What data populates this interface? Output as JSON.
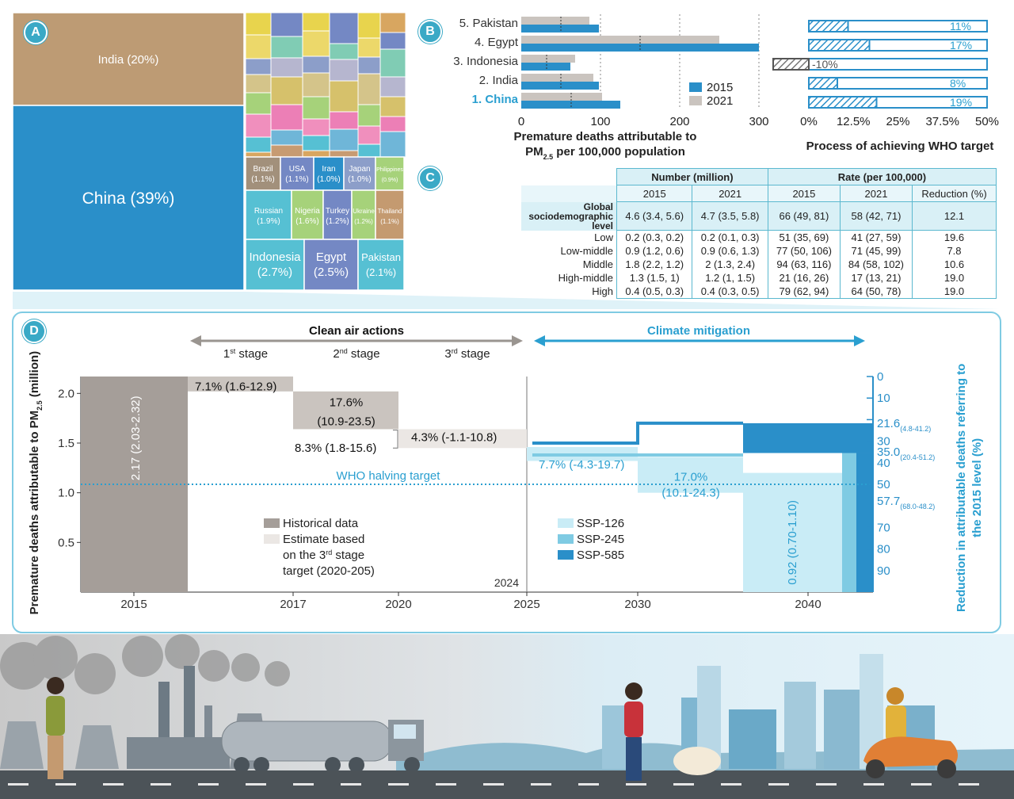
{
  "panels": {
    "a": "A",
    "b": "B",
    "c": "C",
    "d": "D"
  },
  "chart_data": [
    {
      "type": "treemap",
      "panel": "A",
      "items": [
        {
          "name": "China",
          "label": "China (39%)",
          "share": 39
        },
        {
          "name": "India",
          "label": "India (20%)",
          "share": 20
        },
        {
          "name": "Indonesia",
          "label": "Indonesia (2.7%)",
          "share": 2.7
        },
        {
          "name": "Egypt",
          "label": "Egypt (2.5%)",
          "share": 2.5
        },
        {
          "name": "Pakistan",
          "label": "Pakistan (2.1%)",
          "share": 2.1
        },
        {
          "name": "Russian",
          "label": "Russian (1.9%)",
          "share": 1.9
        },
        {
          "name": "Nigeria",
          "label": "Nigeria (1.6%)",
          "share": 1.6
        },
        {
          "name": "Turkey",
          "label": "Turkey (1.2%)",
          "share": 1.2
        },
        {
          "name": "Ukraine",
          "label": "Ukraine (1.2%)",
          "share": 1.2
        },
        {
          "name": "Thailand",
          "label": "Thailand (1.1%)",
          "share": 1.1
        },
        {
          "name": "Brazil",
          "label": "Brazil (1.1%)",
          "share": 1.1
        },
        {
          "name": "USA",
          "label": "USA (1.1%)",
          "share": 1.1
        },
        {
          "name": "Iran",
          "label": "Iran (1.0%)",
          "share": 1.0
        },
        {
          "name": "Japan",
          "label": "Japan (1.0%)",
          "share": 1.0
        },
        {
          "name": "Philippines",
          "label": "Philippines (0.9%)",
          "share": 0.9
        }
      ],
      "colors": {
        "china": "#2a8fc9",
        "india": "#bd9b74",
        "grid": [
          "#e8d44d",
          "#ecd86a",
          "#8c9ec9",
          "#d4c48a",
          "#a6d27a",
          "#f08fbd",
          "#56c0d3",
          "#d8a660",
          "#7488c4",
          "#80ccb4",
          "#b6b6cf",
          "#d6c16b",
          "#ec7fb6",
          "#6fb6d8",
          "#c79b72"
        ]
      }
    },
    {
      "type": "bar",
      "panel": "B",
      "categories": [
        "1. China",
        "2. India",
        "3. Indonesia",
        "4. Egypt",
        "5. Pakistan"
      ],
      "series": [
        {
          "name": "2015",
          "values": [
            125,
            98,
            62,
            300,
            98
          ],
          "color": "#2a8fc9"
        },
        {
          "name": "2021",
          "values": [
            102,
            91,
            68,
            250,
            86
          ],
          "color": "#cac4bf"
        }
      ],
      "markers": [
        63,
        50,
        32,
        150,
        50
      ],
      "xlabel_line1": "Premature deaths attributable to",
      "xlabel_line2": "PM",
      "xlabel_sub": "2.5",
      "xlabel_line2_rest": " per 100,000 population",
      "xticks": [
        0,
        100,
        200,
        300
      ],
      "xlim": [
        0,
        320
      ],
      "highlight_category": "1. China",
      "legend_position": "right"
    },
    {
      "type": "bar",
      "panel": "B-progress",
      "categories": [
        "1. China",
        "2. India",
        "3. Indonesia",
        "4. Egypt",
        "5. Pakistan"
      ],
      "values": [
        19,
        8,
        -10,
        17,
        11
      ],
      "value_labels": [
        "19%",
        "8%",
        "-10%",
        "17%",
        "11%"
      ],
      "xticks": [
        "0%",
        "12.5%",
        "25%",
        "37.5%",
        "50%"
      ],
      "xlim": [
        0,
        50
      ],
      "xlabel": "Process of achieving WHO target"
    },
    {
      "type": "waterfall",
      "panel": "D",
      "ylabel_main": "Premature deaths attributable to PM",
      "ylabel_sub": "2.5",
      "ylabel_unit": " (million)",
      "y2label_line1": "Reduction in attributable deaths referring to",
      "y2label_line2": "the 2015 level (%)",
      "ylim": [
        0,
        2.17
      ],
      "yticks": [
        "0.5",
        "1.0",
        "1.5",
        "2.0"
      ],
      "y2ticks": [
        "0",
        "10",
        "20",
        "30",
        "40",
        "50",
        "60",
        "70",
        "80",
        "90"
      ],
      "xticks": [
        "2015",
        "2017",
        "2020",
        "2025",
        "2030",
        "2040"
      ],
      "year_2024": "2024",
      "baseline": {
        "year": "2015",
        "value": 2.17,
        "label": "2.17 (2.03-2.32)"
      },
      "steps": [
        {
          "label": "7.1% (1.6-12.9)",
          "from": 2.17,
          "to": 2.02
        },
        {
          "label_line1": "17.6%",
          "label_line2": "(10.9-23.5)",
          "from": 2.02,
          "to": 1.64
        },
        {
          "label": "4.3% (-1.1-10.8)",
          "from": 1.64,
          "to": 1.45
        },
        {
          "label": "8.3% (1.8-15.6)"
        }
      ],
      "scenarios": [
        {
          "name": "SSP-126",
          "color": "#c9ecf6",
          "label_line1": "17.0%",
          "label_line2": "(10.1-24.3)",
          "level": 35.0,
          "level_range": "(20.4-51.2)"
        },
        {
          "name": "SSP-245",
          "color": "#7fcbe3",
          "label": "7.7% (-4.3-19.7)",
          "level": 57.7,
          "level_range": "(68.0-48.2)"
        },
        {
          "name": "SSP-585",
          "color": "#2a8fc9",
          "level": 21.6,
          "level_range": "(4.8-41.2)"
        }
      ],
      "final_label": "0.92 (0.70-1.10)",
      "who_line": {
        "value": 1.085,
        "label": "WHO halving target"
      },
      "legend_historical": "Historical data",
      "legend_estimate_1": "Estimate based",
      "legend_estimate_2": "on the 3",
      "legend_estimate_sup": "rd",
      "legend_estimate_3": " stage",
      "legend_estimate_4": "target (2020-205)",
      "clean_air": "Clean air actions",
      "climate": "Climate mitigation",
      "stage1": "st",
      "stage2": "nd",
      "stage3": "rd",
      "stage_word": " stage",
      "stage_nums": [
        "1",
        "2",
        "3"
      ]
    }
  ],
  "table": {
    "group1": "Number (million)",
    "group2": "Rate (per 100,000)",
    "subheaders": [
      "2015",
      "2021",
      "2015",
      "2021",
      "Reduction (%)"
    ],
    "row_label_1": "Global",
    "row_label_2": "sociodemographic level",
    "global": [
      "4.6 (3.4, 5.6)",
      "4.7 (3.5, 5.8)",
      "66 (49, 81)",
      "58 (42, 71)",
      "12.1"
    ],
    "rows": [
      {
        "label": "Low",
        "cells": [
          "0.2 (0.3, 0.2)",
          "0.2 (0.1, 0.3)",
          "51 (35, 69)",
          "41 (27, 59)",
          "19.6"
        ]
      },
      {
        "label": "Low-middle",
        "cells": [
          "0.9 (1.2, 0.6)",
          "0.9 (0.6, 1.3)",
          "77 (50, 106)",
          "71 (45, 99)",
          "7.8"
        ]
      },
      {
        "label": "Middle",
        "cells": [
          "1.8 (2.2, 1.2)",
          "2 (1.3, 2.4)",
          "94 (63, 116)",
          "84 (58, 102)",
          "10.6"
        ]
      },
      {
        "label": "High-middle",
        "cells": [
          "1.3 (1.5, 1)",
          "1.2 (1, 1.5)",
          "21 (16, 26)",
          "17 (13, 21)",
          "19.0"
        ]
      },
      {
        "label": "High",
        "cells": [
          "0.4 (0.5, 0.3)",
          "0.4 (0.3, 0.5)",
          "79 (62, 94)",
          "64 (50, 78)",
          "19.0"
        ]
      }
    ]
  }
}
